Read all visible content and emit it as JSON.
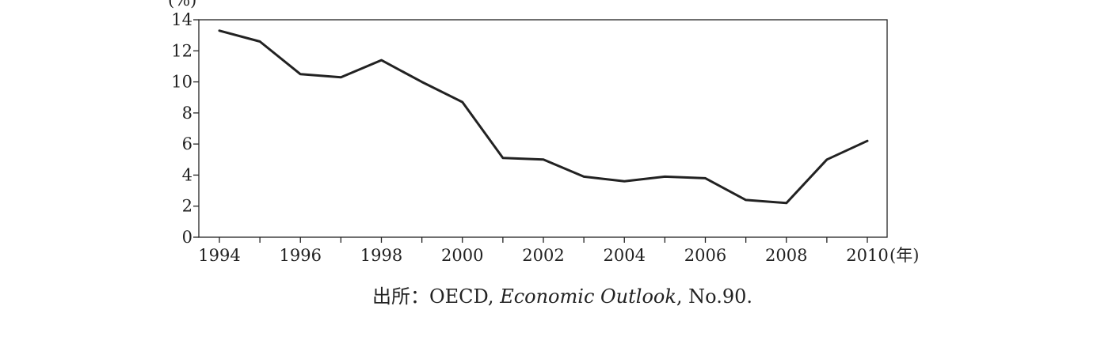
{
  "chart_data": {
    "type": "line",
    "title": "",
    "xlabel": "年",
    "ylabel": "%",
    "x_unit_label": "(年)",
    "y_unit_label": "(%)",
    "xlim": [
      1994,
      2010
    ],
    "ylim": [
      0,
      14
    ],
    "x_ticks": [
      1994,
      1995,
      1996,
      1997,
      1998,
      1999,
      2000,
      2001,
      2002,
      2003,
      2004,
      2005,
      2006,
      2007,
      2008,
      2009,
      2010
    ],
    "x_tick_labels": [
      "1994",
      "1996",
      "1998",
      "2000",
      "2002",
      "2004",
      "2006",
      "2008",
      "2010"
    ],
    "x_tick_label_values": [
      1994,
      1996,
      1998,
      2000,
      2002,
      2004,
      2006,
      2008,
      2010
    ],
    "y_ticks": [
      0,
      2,
      4,
      6,
      8,
      10,
      12,
      14
    ],
    "y_tick_labels": [
      "0",
      "2",
      "4",
      "6",
      "8",
      "10",
      "12",
      "14"
    ],
    "grid": false,
    "legend": "none",
    "line_color": "#222222",
    "series": [
      {
        "x": [
          1994,
          1995,
          1996,
          1997,
          1998,
          1999,
          2000,
          2001,
          2002,
          2003,
          2004,
          2005,
          2006,
          2007,
          2008,
          2009,
          2010
        ],
        "values": [
          13.3,
          12.6,
          10.5,
          10.3,
          11.4,
          10.0,
          8.7,
          5.1,
          5.0,
          3.9,
          3.6,
          3.9,
          3.8,
          2.4,
          2.2,
          5.0,
          6.2
        ]
      }
    ]
  },
  "source": {
    "prefix": "出所：OECD, ",
    "italic": "Economic Outlook",
    "suffix": ", No.90."
  }
}
